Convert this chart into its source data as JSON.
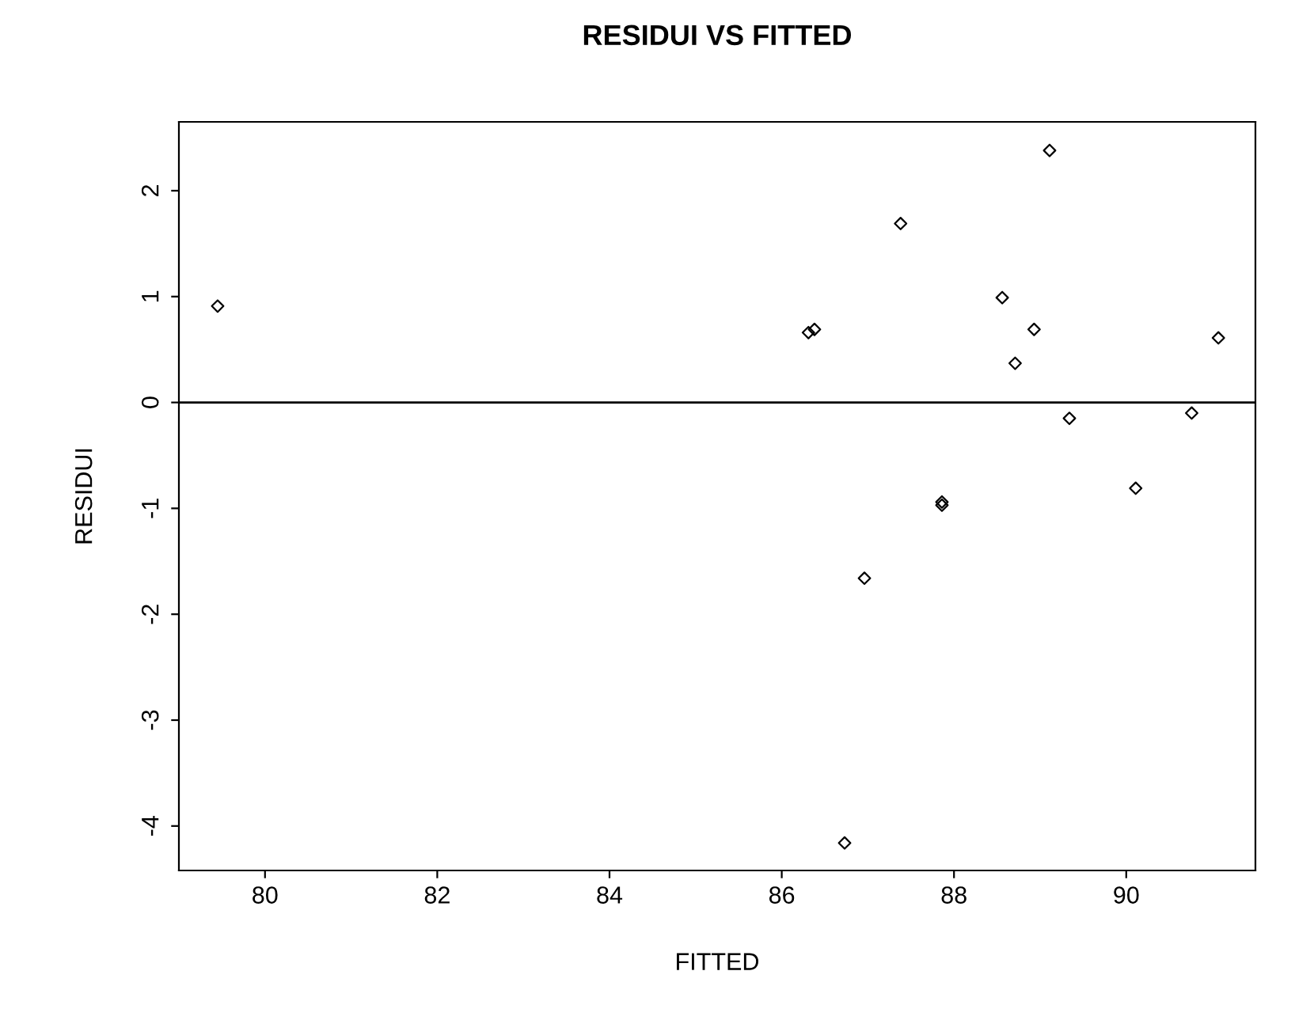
{
  "chart_data": {
    "type": "scatter",
    "title": "RESIDUI VS FITTED",
    "xlabel": "FITTED",
    "ylabel": "RESIDUI",
    "x": [
      79.45,
      86.31,
      86.38,
      87.38,
      87.86,
      87.86,
      86.96,
      86.73,
      88.56,
      88.71,
      88.93,
      89.11,
      89.34,
      90.11,
      90.76,
      91.07
    ],
    "values": [
      0.91,
      0.66,
      0.69,
      1.69,
      -0.94,
      -0.97,
      -1.66,
      -4.16,
      0.99,
      0.37,
      0.69,
      2.38,
      -0.15,
      -0.81,
      -0.1,
      0.61
    ],
    "color": "#000000",
    "marker": "diamond",
    "xlim": [
      79.0,
      91.5
    ],
    "xticks": [
      80,
      82,
      84,
      86,
      88,
      90
    ],
    "ylim": [
      -4.42,
      2.65
    ],
    "yticks": [
      -4,
      -3,
      -2,
      -1,
      0,
      1,
      2
    ],
    "ref_lines": [
      {
        "axis": "y",
        "value": 0,
        "color": "#000000"
      }
    ],
    "grid": false,
    "legend": false
  }
}
